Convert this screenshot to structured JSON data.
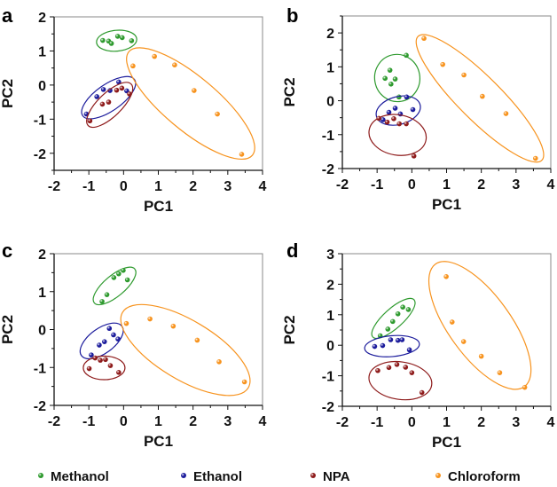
{
  "series_colors": {
    "Methanol": "#2e9a2e",
    "Ethanol": "#1c1c9c",
    "NPA": "#8e1b1b",
    "Chloroform": "#f7931e"
  },
  "legend": [
    "Methanol",
    "Ethanol",
    "NPA",
    "Chloroform"
  ],
  "chart_data": [
    {
      "type": "scatter",
      "panel": "a",
      "xlabel": "PC1",
      "ylabel": "PC2",
      "xlim": [
        -2,
        4
      ],
      "ylim": [
        -2.5,
        2
      ],
      "xticks": [
        -2,
        -1,
        0,
        1,
        2,
        3,
        4
      ],
      "yticks": [
        -2,
        -1,
        0,
        1,
        2
      ],
      "series": [
        {
          "name": "Methanol",
          "points": [
            [
              -0.6,
              1.31
            ],
            [
              -0.43,
              1.29
            ],
            [
              -0.35,
              1.22
            ],
            [
              -0.17,
              1.43
            ],
            [
              -0.04,
              1.39
            ],
            [
              0.23,
              1.3
            ]
          ],
          "ellipse": {
            "cx": -0.2,
            "cy": 1.3,
            "rx": 0.58,
            "ry": 0.3,
            "angle": -5
          }
        },
        {
          "name": "Ethanol",
          "points": [
            [
              -1.07,
              -0.85
            ],
            [
              -0.77,
              -0.34
            ],
            [
              -0.58,
              -0.13
            ],
            [
              -0.39,
              -0.16
            ],
            [
              -0.14,
              0.09
            ],
            [
              0.09,
              -0.17
            ]
          ],
          "ellipse": {
            "cx": -0.43,
            "cy": -0.37,
            "rx": 0.91,
            "ry": 0.38,
            "angle": -35
          }
        },
        {
          "name": "NPA",
          "points": [
            [
              -0.97,
              -1.05
            ],
            [
              -0.61,
              -0.56
            ],
            [
              -0.43,
              -0.5
            ],
            [
              -0.2,
              -0.15
            ],
            [
              -0.05,
              -0.09
            ],
            [
              0.17,
              -0.26
            ]
          ],
          "ellipse": {
            "cx": -0.4,
            "cy": -0.58,
            "rx": 0.86,
            "ry": 0.34,
            "angle": -44
          }
        },
        {
          "name": "Chloroform",
          "points": [
            [
              0.27,
              0.56
            ],
            [
              0.89,
              0.84
            ],
            [
              1.47,
              0.59
            ],
            [
              2.03,
              -0.16
            ],
            [
              2.7,
              -0.85
            ],
            [
              3.4,
              -2.03
            ]
          ],
          "ellipse": {
            "cx": 1.93,
            "cy": -0.54,
            "rx": 2.32,
            "ry": 0.77,
            "angle": 40
          }
        }
      ]
    },
    {
      "type": "scatter",
      "panel": "b",
      "xlabel": "PC1",
      "ylabel": "PC2",
      "xlim": [
        -2,
        4
      ],
      "ylim": [
        -2,
        2.5
      ],
      "xticks": [
        -2,
        -1,
        0,
        1,
        2,
        3,
        4
      ],
      "yticks": [
        -2,
        -1,
        0,
        1,
        2
      ],
      "series": [
        {
          "name": "Methanol",
          "points": [
            [
              -0.16,
              1.34
            ],
            [
              -0.63,
              0.9
            ],
            [
              -0.77,
              0.66
            ],
            [
              -0.48,
              0.64
            ],
            [
              -0.6,
              0.49
            ],
            [
              -0.37,
              0.11
            ]
          ],
          "ellipse": {
            "cx": -0.42,
            "cy": 0.67,
            "rx": 0.65,
            "ry": 0.68,
            "angle": -10
          }
        },
        {
          "name": "Ethanol",
          "points": [
            [
              -0.15,
              0.11
            ],
            [
              -0.48,
              -0.22
            ],
            [
              -0.66,
              -0.34
            ],
            [
              -0.33,
              -0.39
            ],
            [
              0.03,
              -0.26
            ],
            [
              -0.83,
              -0.56
            ]
          ],
          "ellipse": {
            "cx": -0.39,
            "cy": -0.29,
            "rx": 0.65,
            "ry": 0.4,
            "angle": -15
          }
        },
        {
          "name": "NPA",
          "points": [
            [
              -0.95,
              -0.52
            ],
            [
              -0.71,
              -0.63
            ],
            [
              -0.52,
              -0.53
            ],
            [
              -0.36,
              -0.68
            ],
            [
              -0.16,
              -0.68
            ],
            [
              0.06,
              -1.63
            ]
          ],
          "ellipse": {
            "cx": -0.41,
            "cy": -1.01,
            "rx": 0.83,
            "ry": 0.58,
            "angle": 10
          }
        },
        {
          "name": "Chloroform",
          "points": [
            [
              0.35,
              1.84
            ],
            [
              0.89,
              1.07
            ],
            [
              1.5,
              0.76
            ],
            [
              2.03,
              0.13
            ],
            [
              2.71,
              -0.38
            ],
            [
              3.56,
              -1.7
            ]
          ],
          "ellipse": {
            "cx": 1.96,
            "cy": 0.07,
            "rx": 2.52,
            "ry": 0.62,
            "angle": 45
          }
        }
      ]
    },
    {
      "type": "scatter",
      "panel": "c",
      "xlabel": "PC1",
      "ylabel": "PC2",
      "xlim": [
        -2,
        4
      ],
      "ylim": [
        -2,
        2
      ],
      "xticks": [
        -2,
        -1,
        0,
        1,
        2,
        3,
        4
      ],
      "yticks": [
        -2,
        -1,
        0,
        1,
        2
      ],
      "series": [
        {
          "name": "Methanol",
          "points": [
            [
              -0.62,
              0.74
            ],
            [
              -0.48,
              0.92
            ],
            [
              -0.28,
              1.37
            ],
            [
              -0.14,
              1.47
            ],
            [
              -0.01,
              1.56
            ],
            [
              0.11,
              1.31
            ]
          ],
          "ellipse": {
            "cx": -0.26,
            "cy": 1.15,
            "rx": 0.76,
            "ry": 0.3,
            "angle": -40
          }
        },
        {
          "name": "Ethanol",
          "points": [
            [
              -0.41,
              0.03
            ],
            [
              -0.29,
              -0.14
            ],
            [
              -0.55,
              -0.32
            ],
            [
              -0.7,
              -0.41
            ],
            [
              -0.16,
              -0.25
            ],
            [
              -0.93,
              -0.67
            ]
          ],
          "ellipse": {
            "cx": -0.63,
            "cy": -0.3,
            "rx": 0.72,
            "ry": 0.36,
            "angle": -36
          }
        },
        {
          "name": "NPA",
          "points": [
            [
              -0.82,
              -0.75
            ],
            [
              -0.67,
              -0.81
            ],
            [
              -0.52,
              -0.79
            ],
            [
              -0.38,
              -0.95
            ],
            [
              -0.99,
              -1.03
            ],
            [
              -0.14,
              -1.13
            ]
          ],
          "ellipse": {
            "cx": -0.56,
            "cy": -1.01,
            "rx": 0.6,
            "ry": 0.34,
            "angle": 0
          }
        },
        {
          "name": "Chloroform",
          "points": [
            [
              0.08,
              0.16
            ],
            [
              0.76,
              0.28
            ],
            [
              1.43,
              0.09
            ],
            [
              2.12,
              -0.28
            ],
            [
              2.75,
              -0.85
            ],
            [
              3.48,
              -1.38
            ]
          ],
          "ellipse": {
            "cx": 1.78,
            "cy": -0.54,
            "rx": 2.11,
            "ry": 0.85,
            "angle": 31
          }
        }
      ]
    },
    {
      "type": "scatter",
      "panel": "d",
      "xlabel": "PC1",
      "ylabel": "PC2",
      "xlim": [
        -2,
        4
      ],
      "ylim": [
        -2,
        3
      ],
      "xticks": [
        -2,
        -1,
        0,
        1,
        2,
        3,
        4
      ],
      "yticks": [
        -2,
        -1,
        0,
        1,
        2,
        3
      ],
      "series": [
        {
          "name": "Methanol",
          "points": [
            [
              -0.91,
              0.31
            ],
            [
              -0.69,
              0.53
            ],
            [
              -0.55,
              0.78
            ],
            [
              -0.4,
              1.03
            ],
            [
              -0.26,
              1.25
            ],
            [
              -0.1,
              1.17
            ]
          ],
          "ellipse": {
            "cx": -0.53,
            "cy": 0.88,
            "rx": 0.8,
            "ry": 0.28,
            "angle": -42
          }
        },
        {
          "name": "Ethanol",
          "points": [
            [
              -1.07,
              -0.04
            ],
            [
              -0.84,
              -0.01
            ],
            [
              -0.61,
              0.18
            ],
            [
              -0.4,
              0.16
            ],
            [
              -0.28,
              0.18
            ],
            [
              -0.07,
              -0.15
            ]
          ],
          "ellipse": {
            "cx": -0.57,
            "cy": -0.03,
            "rx": 0.79,
            "ry": 0.3,
            "angle": -5
          }
        },
        {
          "name": "NPA",
          "points": [
            [
              -0.98,
              -0.83
            ],
            [
              -0.66,
              -0.73
            ],
            [
              -0.43,
              -0.63
            ],
            [
              -0.18,
              -0.72
            ],
            [
              0.0,
              -0.9
            ],
            [
              0.29,
              -1.55
            ]
          ],
          "ellipse": {
            "cx": -0.33,
            "cy": -1.16,
            "rx": 0.91,
            "ry": 0.54,
            "angle": 8
          }
        },
        {
          "name": "Chloroform",
          "points": [
            [
              0.99,
              2.25
            ],
            [
              1.16,
              0.76
            ],
            [
              1.49,
              0.12
            ],
            [
              2.0,
              -0.36
            ],
            [
              2.53,
              -0.9
            ],
            [
              3.25,
              -1.38
            ]
          ],
          "ellipse": {
            "cx": 1.96,
            "cy": 0.65,
            "rx": 2.18,
            "ry": 0.89,
            "angle": 54
          }
        }
      ]
    }
  ]
}
